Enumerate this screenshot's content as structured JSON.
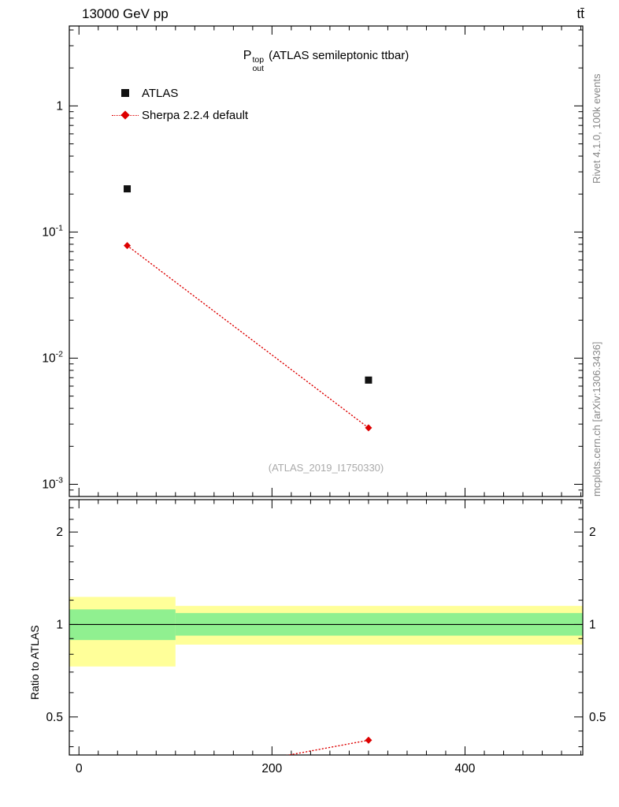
{
  "header": {
    "left": "13000 GeV pp",
    "right": "tt̄"
  },
  "side_notes": {
    "top_right": "Rivet 4.1.0, 100k events",
    "bottom_right": "mcplots.cern.ch [arXiv:1306.3436]"
  },
  "main_panel": {
    "title_symbol": "P",
    "title_sup": "top",
    "title_sub": "out",
    "title_rest": "(ATLAS semileptonic ttbar)",
    "watermark": "(ATLAS_2019_I1750330)",
    "legend": [
      {
        "label": "ATLAS",
        "marker": "black-square"
      },
      {
        "label": "Sherpa 2.2.4 default",
        "marker": "red-diamond-dotted-line"
      }
    ]
  },
  "ratio_panel": {
    "ylabel": "Ratio to ATLAS"
  },
  "colors": {
    "atlas_marker": "#111111",
    "sherpa_red": "#dd0000",
    "band_yellow": "#ffff99",
    "band_green": "#90f090",
    "gray_text": "#888888",
    "watermark_gray": "#aaaaaa"
  },
  "chart_data": {
    "type": "scatter",
    "title": "P_out^top (ATLAS semileptonic ttbar)",
    "xlabel": "",
    "ylabel": "",
    "xlim": [
      -10,
      522
    ],
    "x_ticks": [
      {
        "value": 0,
        "label": "0"
      },
      {
        "value": 200,
        "label": "200"
      },
      {
        "value": 400,
        "label": "400"
      }
    ],
    "x_minor_step": 20,
    "main": {
      "yscale": "log",
      "ylim": [
        0.0008,
        4.3
      ],
      "y_ticks": [
        {
          "value": 1,
          "label": "1"
        },
        {
          "value": 0.1,
          "label": "10^-1"
        },
        {
          "value": 0.01,
          "label": "10^-2"
        },
        {
          "value": 0.001,
          "label": "10^-3"
        }
      ],
      "series": [
        {
          "name": "ATLAS",
          "marker": "square",
          "color": "#111111",
          "line": "none",
          "points": [
            [
              50,
              0.22
            ],
            [
              300,
              0.0067
            ]
          ]
        },
        {
          "name": "Sherpa 2.2.4 default",
          "marker": "diamond",
          "color": "#dd0000",
          "line": "dotted",
          "points": [
            [
              50,
              0.078
            ],
            [
              300,
              0.0028
            ]
          ]
        }
      ]
    },
    "ratio": {
      "yscale": "log",
      "ylim": [
        0.376,
        2.55
      ],
      "y_ticks": [
        {
          "value": 0.5,
          "label": "0.5"
        },
        {
          "value": 1,
          "label": "1"
        },
        {
          "value": 2,
          "label": "2"
        }
      ],
      "y_minor": [
        0.4,
        0.45,
        0.6,
        0.7,
        0.8,
        0.9,
        1.2,
        1.4,
        1.6,
        1.8,
        2.2,
        2.4
      ],
      "reference_line": 1,
      "bands": [
        {
          "x0": 0,
          "x1": 100,
          "yellow": [
            0.73,
            1.23
          ],
          "green": [
            0.89,
            1.12
          ]
        },
        {
          "x0": 100,
          "x1": 520,
          "yellow": [
            0.86,
            1.15
          ],
          "green": [
            0.92,
            1.09
          ]
        }
      ],
      "series": [
        {
          "name": "Sherpa 2.2.4 default",
          "marker": "diamond",
          "color": "#dd0000",
          "line": "dotted",
          "points": [
            [
              50,
              0.3
            ],
            [
              300,
              0.42
            ]
          ]
        }
      ]
    }
  }
}
